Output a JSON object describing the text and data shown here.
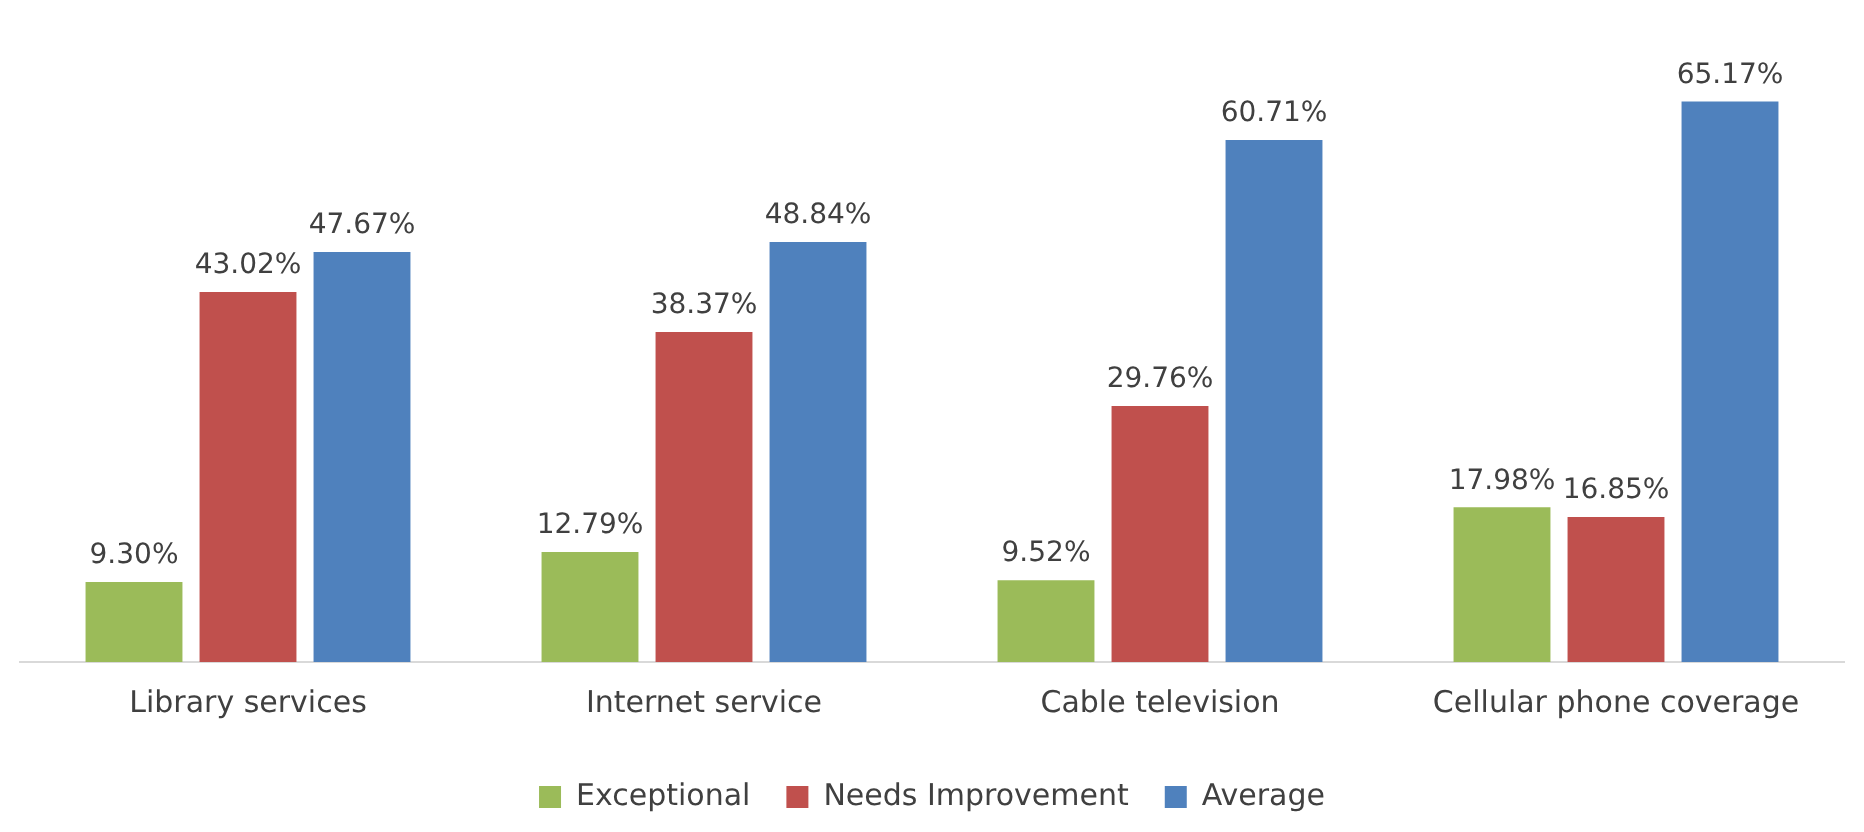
{
  "chart_data": {
    "type": "bar",
    "categories": [
      "Library services",
      "Internet service",
      "Cable television",
      "Cellular phone coverage"
    ],
    "series": [
      {
        "name": "Exceptional",
        "color": "#9bbb59",
        "values": [
          9.3,
          12.79,
          9.52,
          17.98
        ],
        "value_labels": [
          "9.30%",
          "12.79%",
          "9.52%",
          "17.98%"
        ]
      },
      {
        "name": "Needs Improvement",
        "color": "#c0504d",
        "values": [
          43.02,
          38.37,
          29.76,
          16.85
        ],
        "value_labels": [
          "43.02%",
          "38.37%",
          "29.76%",
          "16.85%"
        ]
      },
      {
        "name": "Average",
        "color": "#4f81bd",
        "values": [
          47.67,
          48.84,
          60.71,
          65.17
        ],
        "value_labels": [
          "47.67%",
          "48.84%",
          "60.71%",
          "65.17%"
        ]
      }
    ],
    "legend": "bottom",
    "grid": false,
    "tick_labels": "x"
  }
}
